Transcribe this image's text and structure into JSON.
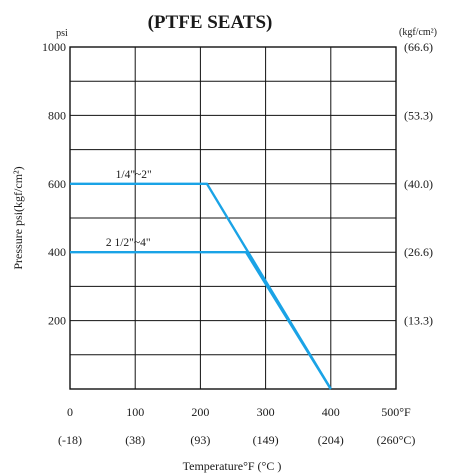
{
  "chart_data": {
    "type": "line",
    "title": "(PTFE  SEATS)",
    "ylabel": "Pressure  psi(kgf/cm²)",
    "xlabel": "Temperature°F (°C )",
    "y_unit_left": "psi",
    "y_unit_right": "(kgf/cm²)",
    "xlim": [
      0,
      500
    ],
    "ylim": [
      0,
      1000
    ],
    "grid": true,
    "x_ticks": [
      {
        "value": 0,
        "label": "0",
        "sub": "(-18)"
      },
      {
        "value": 100,
        "label": "100",
        "sub": "(38)"
      },
      {
        "value": 200,
        "label": "200",
        "sub": "(93)"
      },
      {
        "value": 300,
        "label": "300",
        "sub": "(149)"
      },
      {
        "value": 400,
        "label": "400",
        "sub": "(204)"
      },
      {
        "value": 500,
        "label": "500°F",
        "sub": "(260°C)"
      }
    ],
    "y_ticks_left": [
      {
        "value": 200,
        "label": "200"
      },
      {
        "value": 400,
        "label": "400"
      },
      {
        "value": 600,
        "label": "600"
      },
      {
        "value": 800,
        "label": "800"
      },
      {
        "value": 1000,
        "label": "1000"
      }
    ],
    "y_ticks_right": [
      {
        "value": 200,
        "label": "(13.3)"
      },
      {
        "value": 400,
        "label": "(26.6)"
      },
      {
        "value": 600,
        "label": "(40.0)"
      },
      {
        "value": 800,
        "label": "(53.3)"
      },
      {
        "value": 1000,
        "label": "(66.6)"
      }
    ],
    "series": [
      {
        "name": "1/4\"~2\"",
        "x": [
          0,
          210,
          400
        ],
        "y": [
          600,
          600,
          0
        ]
      },
      {
        "name": "2 1/2\"~4\"",
        "x": [
          0,
          270,
          400
        ],
        "y": [
          400,
          400,
          0
        ]
      }
    ],
    "line_color": "#1aa3e6",
    "grid_color": "#111111"
  }
}
